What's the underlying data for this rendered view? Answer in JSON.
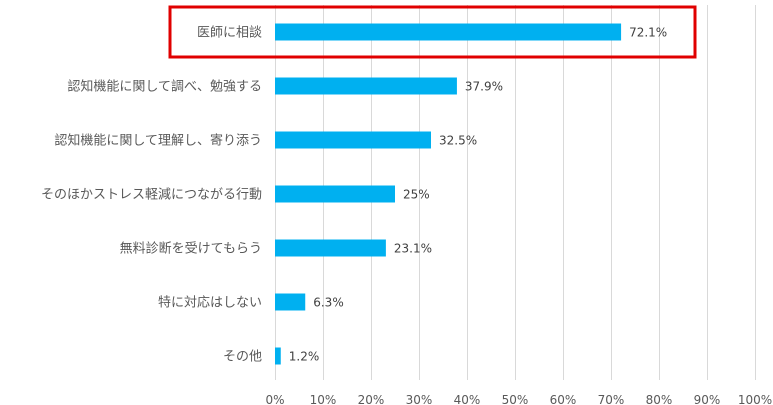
{
  "chart_data": {
    "type": "bar",
    "orientation": "horizontal",
    "categories": [
      "医師に相談",
      "認知機能に関して調べ、勉強する",
      "認知機能に関して理解し、寄り添う",
      "そのほかストレス軽減につながる行動",
      "無料診断を受けてもらう",
      "特に対応はしない",
      "その他"
    ],
    "values": [
      72.1,
      37.9,
      32.5,
      25,
      23.1,
      6.3,
      1.2
    ],
    "data_labels": [
      "72.1%",
      "37.9%",
      "32.5%",
      "25%",
      "23.1%",
      "6.3%",
      "1.2%"
    ],
    "x_ticks": [
      "0%",
      "10%",
      "20%",
      "30%",
      "40%",
      "50%",
      "60%",
      "70%",
      "80%",
      "90%",
      "100%"
    ],
    "xlim": [
      0,
      100
    ],
    "grid": "vertical",
    "bar_color": "#00b0f0",
    "highlight": {
      "category_index": 0,
      "color": "#e00000"
    },
    "title": "",
    "xlabel": "",
    "ylabel": ""
  }
}
